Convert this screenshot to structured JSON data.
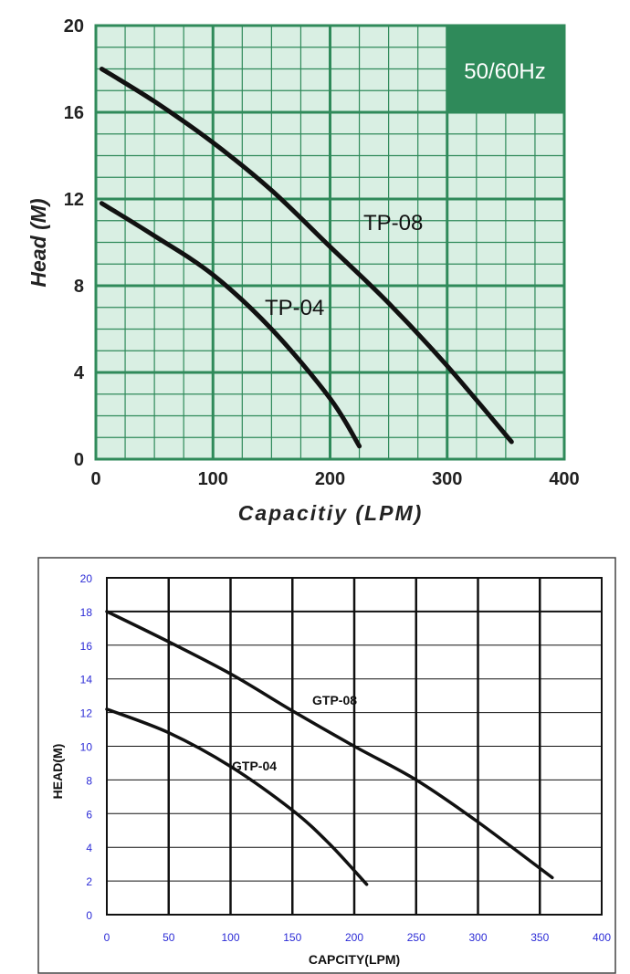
{
  "chart_data": [
    {
      "type": "line",
      "title": "",
      "badge": "50/60Hz",
      "xlabel": "Capacitiy (LPM)",
      "ylabel": "Head (M)",
      "xlim": [
        0,
        400
      ],
      "ylim": [
        0,
        20
      ],
      "x_ticks": [
        "0",
        "100",
        "200",
        "300",
        "400"
      ],
      "y_ticks": [
        "0",
        "4",
        "8",
        "12",
        "16",
        "20"
      ],
      "grid": true,
      "series": [
        {
          "name": "TP-08",
          "x": [
            5,
            50,
            100,
            150,
            200,
            250,
            300,
            355
          ],
          "y": [
            18,
            16.5,
            14.6,
            12.4,
            9.8,
            7.2,
            4.3,
            0.8
          ]
        },
        {
          "name": "TP-04",
          "x": [
            5,
            50,
            100,
            150,
            200,
            225
          ],
          "y": [
            11.8,
            10.3,
            8.5,
            6.0,
            2.8,
            0.6
          ]
        }
      ],
      "colors": {
        "background": "#d9efe3",
        "grid": "#2f8a5a",
        "badge_bg": "#2f8a5a",
        "curve": "#111111"
      }
    },
    {
      "type": "line",
      "title": "",
      "xlabel": "CAPCITY(LPM)",
      "ylabel": "HEAD(M)",
      "xlim": [
        0,
        400
      ],
      "ylim": [
        0,
        20
      ],
      "x_ticks": [
        "0",
        "50",
        "100",
        "150",
        "200",
        "250",
        "300",
        "350",
        "400"
      ],
      "y_ticks": [
        "0",
        "2",
        "4",
        "6",
        "8",
        "10",
        "12",
        "14",
        "16",
        "18",
        "20"
      ],
      "grid": true,
      "series": [
        {
          "name": "GTP-08",
          "x": [
            0,
            50,
            100,
            150,
            200,
            250,
            300,
            360
          ],
          "y": [
            18,
            16.2,
            14.3,
            12.1,
            10.0,
            8.0,
            5.5,
            2.2
          ]
        },
        {
          "name": "GTP-04",
          "x": [
            0,
            50,
            100,
            150,
            180,
            210
          ],
          "y": [
            12.2,
            10.8,
            8.8,
            6.2,
            4.2,
            1.8
          ]
        }
      ],
      "colors": {
        "background": "#ffffff",
        "grid": "#111111",
        "tick_text": "#2b2bd6",
        "curve": "#111111"
      }
    }
  ]
}
